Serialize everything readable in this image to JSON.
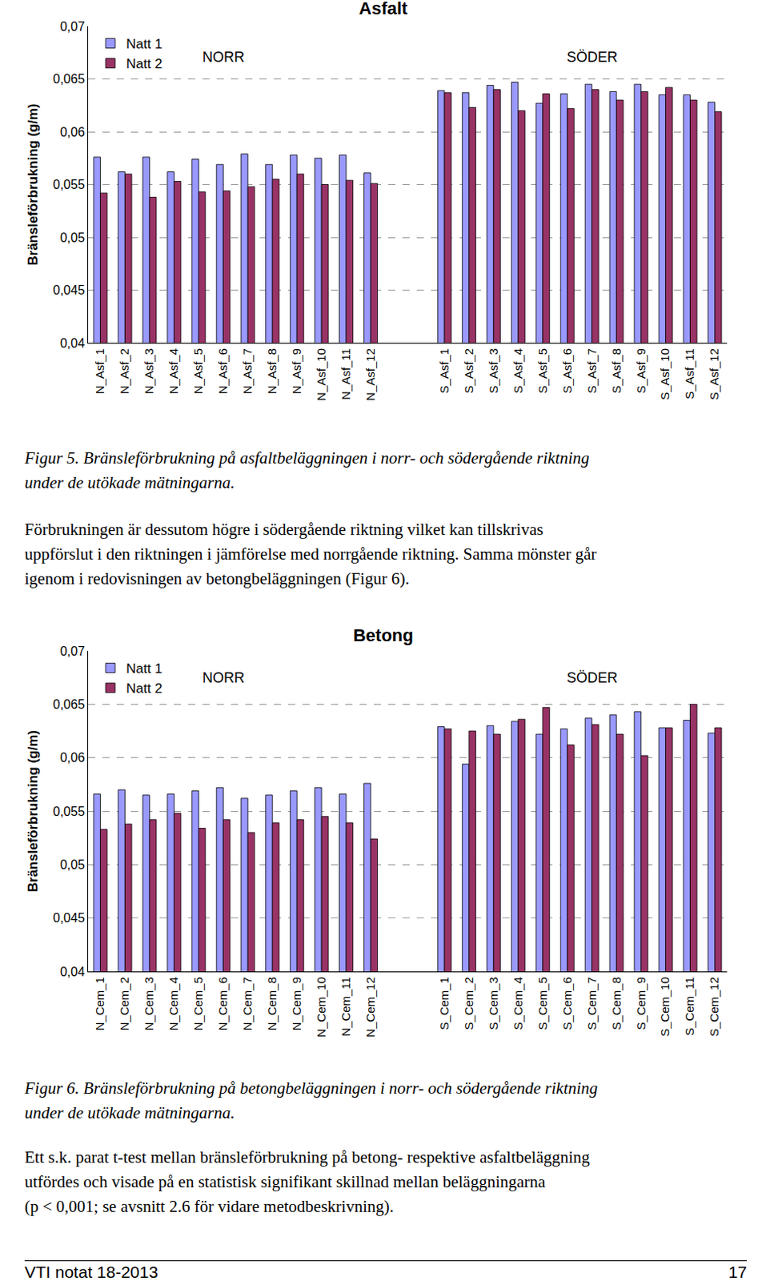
{
  "chart_data": [
    {
      "type": "bar",
      "title": "Asfalt",
      "y_label": "Bränsleförbrukning (g/m)",
      "categories": [
        "N_Asf_1",
        "N_Asf_2",
        "N_Asf_3",
        "N_Asf_4",
        "N_Asf_5",
        "N_Asf_6",
        "N_Asf_7",
        "N_Asf_8",
        "N_Asf_9",
        "N_Asf_10",
        "N_Asf_11",
        "N_Asf_12",
        null,
        null,
        "S_Asf_1",
        "S_Asf_2",
        "S_Asf_3",
        "S_Asf_4",
        "S_Asf_5",
        "S_Asf_6",
        "S_Asf_7",
        "S_Asf_8",
        "S_Asf_9",
        "S_Asf_10",
        "S_Asf_11",
        "S_Asf_12"
      ],
      "series": [
        {
          "name": "Natt 1",
          "color": "#9999ff",
          "values": [
            0.0576,
            0.0562,
            0.0576,
            0.0562,
            0.0574,
            0.0569,
            0.0579,
            0.0569,
            0.0578,
            0.0575,
            0.0578,
            0.0561,
            null,
            null,
            0.0639,
            0.0637,
            0.0644,
            0.0647,
            0.0627,
            0.0636,
            0.0645,
            0.0638,
            0.0645,
            0.0635,
            0.0635,
            0.0628
          ]
        },
        {
          "name": "Natt 2",
          "color": "#993366",
          "values": [
            0.0542,
            0.056,
            0.0538,
            0.0553,
            0.0543,
            0.0544,
            0.0548,
            0.0555,
            0.056,
            0.055,
            0.0554,
            0.0551,
            null,
            null,
            0.0637,
            0.0623,
            0.064,
            0.062,
            0.0636,
            0.0622,
            0.064,
            0.063,
            0.0638,
            0.0642,
            0.063,
            0.0619
          ]
        }
      ],
      "ylim": [
        0.04,
        0.07
      ],
      "yticks": [
        {
          "value": 0.04,
          "label": "0,04"
        },
        {
          "value": 0.045,
          "label": "0,045"
        },
        {
          "value": 0.05,
          "label": "0,05"
        },
        {
          "value": 0.055,
          "label": "0,055"
        },
        {
          "value": 0.06,
          "label": "0,06"
        },
        {
          "value": 0.065,
          "label": "0,065"
        },
        {
          "value": 0.07,
          "label": "0,07"
        }
      ],
      "grid": true,
      "legend": "upper left",
      "annotations": [
        {
          "text": "NORR",
          "category": "N_Asf_6",
          "y": 0.0671
        },
        {
          "text": "SÖDER",
          "category": "S_Asf_7",
          "y": 0.0671
        }
      ]
    },
    {
      "type": "bar",
      "title": "Betong",
      "y_label": "Bränsleförbrukning (g/m)",
      "categories": [
        "N_Cem_1",
        "N_Cem_2",
        "N_Cem_3",
        "N_Cem_4",
        "N_Cem_5",
        "N_Cem_6",
        "N_Cem_7",
        "N_Cem_8",
        "N_Cem_9",
        "N_Cem_10",
        "N_Cem_11",
        "N_Cem_12",
        null,
        null,
        "S_Cem_1",
        "S_Cem_2",
        "S_Cem_3",
        "S_Cem_4",
        "S_Cem_5",
        "S_Cem_6",
        "S_Cem_7",
        "S_Cem_8",
        "S_Cem_9",
        "S_Cem_10",
        "S_Cem_11",
        "S_Cem_12"
      ],
      "series": [
        {
          "name": "Natt 1",
          "color": "#9999ff",
          "values": [
            0.0566,
            0.057,
            0.0565,
            0.0566,
            0.0569,
            0.0572,
            0.0562,
            0.0565,
            0.0569,
            0.0572,
            0.0566,
            0.0576,
            null,
            null,
            0.0629,
            0.0594,
            0.063,
            0.0634,
            0.0622,
            0.0627,
            0.0637,
            0.064,
            0.0643,
            0.0628,
            0.0635,
            0.0623
          ]
        },
        {
          "name": "Natt 2",
          "color": "#993366",
          "values": [
            0.0533,
            0.0538,
            0.0542,
            0.0548,
            0.0534,
            0.0542,
            0.053,
            0.0539,
            0.0542,
            0.0545,
            0.0539,
            0.0524,
            null,
            null,
            0.0627,
            0.0625,
            0.0622,
            0.0636,
            0.0647,
            0.0612,
            0.0631,
            0.0622,
            0.0602,
            0.0628,
            0.065,
            0.0628
          ]
        }
      ],
      "ylim": [
        0.04,
        0.07
      ],
      "yticks": [
        {
          "value": 0.04,
          "label": "0,04"
        },
        {
          "value": 0.045,
          "label": "0,045"
        },
        {
          "value": 0.05,
          "label": "0,05"
        },
        {
          "value": 0.055,
          "label": "0,055"
        },
        {
          "value": 0.06,
          "label": "0,06"
        },
        {
          "value": 0.065,
          "label": "0,065"
        },
        {
          "value": 0.07,
          "label": "0,07"
        }
      ],
      "grid": true,
      "legend": "upper left",
      "annotations": [
        {
          "text": "NORR",
          "category": "N_Cem_6",
          "y": 0.0675
        },
        {
          "text": "SÖDER",
          "category": "S_Cem_7",
          "y": 0.0675
        }
      ]
    }
  ],
  "text": {
    "caption_5": [
      "Figur 5. Bränsleförbrukning på asfaltbeläggningen i norr- och södergående riktning",
      "under de utökade mätningarna."
    ],
    "paragraph_1": [
      "Förbrukningen är dessutom högre i södergående riktning vilket kan tillskrivas",
      "uppförslut i den riktningen i jämförelse med norrgående riktning. Samma mönster går",
      "igenom i redovisningen av betongbeläggningen (Figur 6)."
    ],
    "caption_6": [
      "Figur 6. Bränsleförbrukning på betongbeläggningen i norr- och södergående riktning",
      "under de utökade mätningarna."
    ],
    "paragraph_2": [
      "Ett s.k. parat t-test mellan bränsleförbrukning på betong- respektive asfaltbeläggning",
      "utfördes och visade på en statistisk signifikant skillnad mellan beläggningarna",
      "(p < 0,001; se avsnitt 2.6 för vidare metodbeskrivning)."
    ],
    "footer": {
      "left": "VTI notat 18-2013",
      "right": "17"
    }
  }
}
